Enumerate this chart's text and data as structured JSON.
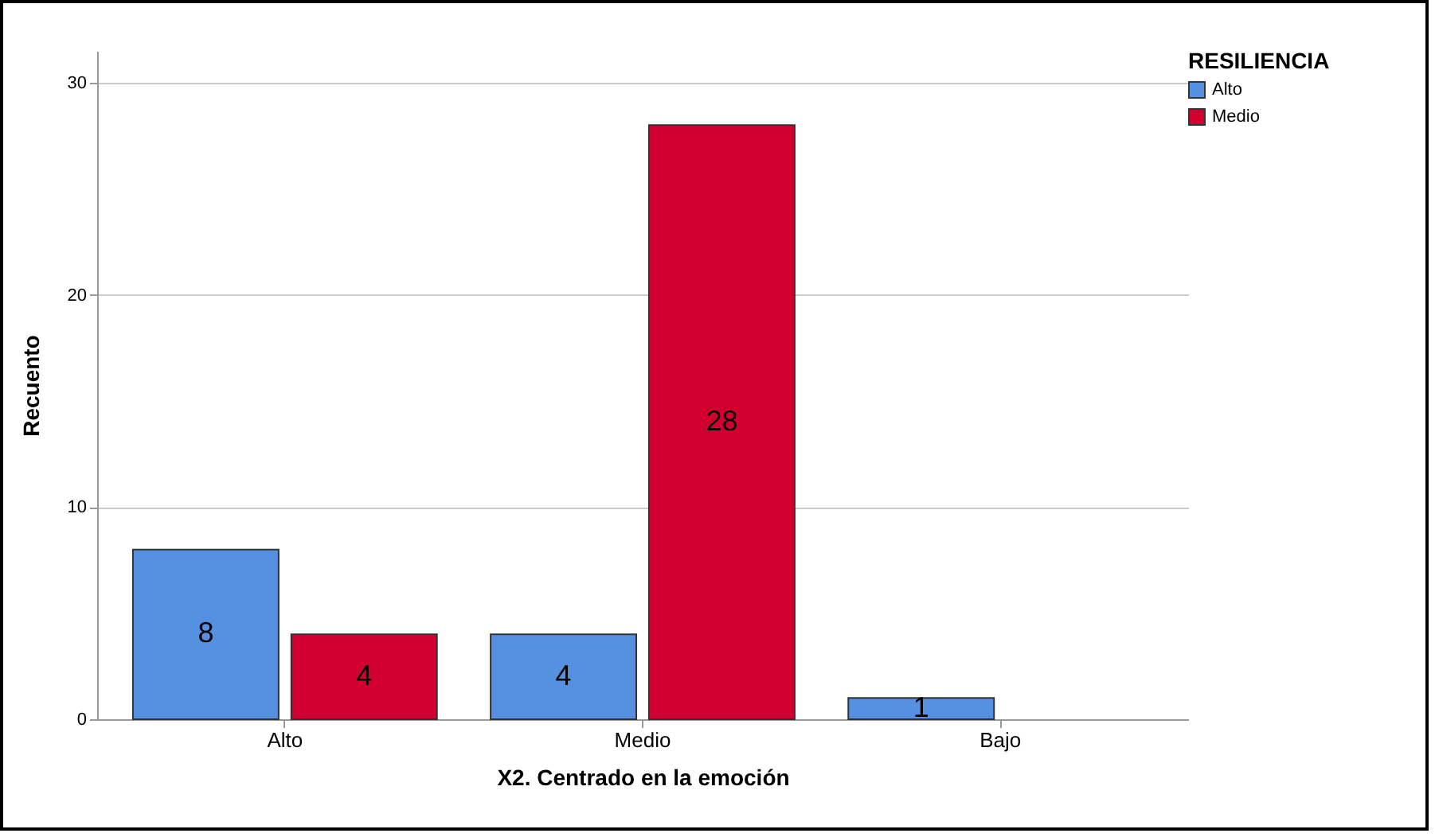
{
  "chart_data": {
    "type": "bar",
    "xlabel": "X2. Centrado en la emoción",
    "ylabel": "Recuento",
    "legend_title": "RESILIENCIA",
    "categories": [
      "Alto",
      "Medio",
      "Bajo"
    ],
    "series": [
      {
        "name": "Alto",
        "color": "#5591e0",
        "values": [
          8,
          4,
          1
        ]
      },
      {
        "name": "Medio",
        "color": "#d2002e",
        "values": [
          4,
          28,
          null
        ]
      }
    ],
    "ylim": [
      0,
      31.5
    ],
    "yticks": [
      0,
      10,
      20,
      30
    ],
    "grid": "y",
    "legend": "top right",
    "data_labels": true
  }
}
